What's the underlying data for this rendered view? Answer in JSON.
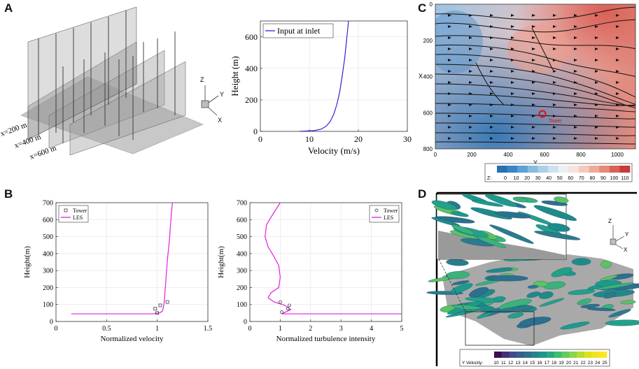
{
  "panels": {
    "a": "A",
    "b": "B",
    "c": "C",
    "d": "D"
  },
  "panel_a_schematic": {
    "plane_labels": [
      "x=200 m",
      "x=400 m",
      "x=600 m"
    ],
    "axis_labels": {
      "z": "Z",
      "y": "Y",
      "x": "X"
    }
  },
  "panel_c_map": {
    "x_ticks": [
      "0",
      "200",
      "400",
      "600",
      "800",
      "1000"
    ],
    "y_ticks": [
      "0",
      "200",
      "400",
      "600",
      "800"
    ],
    "x_axis_label": "Y",
    "y_axis_label": "X",
    "marker_label": "Tower",
    "colorbar_title": "Z:",
    "colorbar_ticks": [
      "0",
      "10",
      "20",
      "30",
      "40",
      "50",
      "60",
      "70",
      "80",
      "90",
      "100",
      "110"
    ],
    "colorbar_colors": [
      "#2a6fb0",
      "#3a86c4",
      "#5ea1d4",
      "#86bce0",
      "#adcfe8",
      "#cfe1ef",
      "#eaf0f4",
      "#f7e2dc",
      "#f5c9bc",
      "#eeab9a",
      "#e58978",
      "#d86357",
      "#c73d3c"
    ]
  },
  "panel_d_iso": {
    "colorbar_title": "Y Velocity:",
    "colorbar_ticks": [
      "10",
      "11",
      "12",
      "13",
      "14",
      "15",
      "16",
      "17",
      "18",
      "19",
      "20",
      "21",
      "22",
      "23",
      "24",
      "25"
    ],
    "colorbar_colors": [
      "#3b0f4f",
      "#43307a",
      "#3e4c8a",
      "#355f8d",
      "#2c718e",
      "#24838e",
      "#1f958b",
      "#27a882",
      "#40bc72",
      "#62cb5f",
      "#8ad647",
      "#b4de2c",
      "#dde318",
      "#f2e51d",
      "#fde725"
    ],
    "axis_labels": {
      "z": "Z",
      "y": "Y",
      "x": "X"
    }
  },
  "chart_data": [
    {
      "id": "inlet-profile",
      "type": "line",
      "xlabel": "Velocity (m/s)",
      "ylabel": "Height (m)",
      "xlim": [
        0,
        30
      ],
      "ylim": [
        0,
        700
      ],
      "xticks": [
        0,
        10,
        20,
        30
      ],
      "yticks": [
        0,
        200,
        400,
        600
      ],
      "grid": true,
      "legend": "top-left",
      "series": [
        {
          "name": "Input at inlet",
          "color": "#3a1fd6",
          "x": [
            8.0,
            11.0,
            12.5,
            13.5,
            14.3,
            15.0,
            15.6,
            16.2,
            16.7,
            17.2,
            17.6,
            18.0
          ],
          "y": [
            0,
            5,
            15,
            35,
            65,
            110,
            170,
            250,
            350,
            460,
            580,
            700
          ]
        }
      ]
    },
    {
      "id": "normalized-velocity",
      "type": "line",
      "xlabel": "Normalized velocity",
      "ylabel": "Height(m)",
      "xlim": [
        0,
        1.5
      ],
      "ylim": [
        0,
        700
      ],
      "xticks": [
        0,
        0.5,
        1,
        1.5
      ],
      "yticks": [
        0,
        100,
        200,
        300,
        400,
        500,
        600,
        700
      ],
      "grid": true,
      "legend": "top-left",
      "series": [
        {
          "name": "LES",
          "color": "#e020e0",
          "x": [
            0.15,
            0.95,
            1.02,
            1.05,
            1.06,
            1.07,
            1.08,
            1.09,
            1.1,
            1.11,
            1.12,
            1.13,
            1.14,
            1.15
          ],
          "y": [
            45,
            45,
            50,
            60,
            80,
            120,
            200,
            280,
            360,
            420,
            480,
            560,
            640,
            700
          ]
        },
        {
          "name": "Tower",
          "marker": "square",
          "x": [
            1.0,
            0.98,
            1.03,
            1.1
          ],
          "y": [
            50,
            75,
            95,
            115
          ]
        }
      ]
    },
    {
      "id": "normalized-turbulence",
      "type": "line",
      "xlabel": "Normalized turbulence intensity",
      "ylabel": "Height(m)",
      "xlim": [
        0,
        5
      ],
      "ylim": [
        0,
        700
      ],
      "xticks": [
        0,
        1,
        2,
        3,
        4,
        5
      ],
      "yticks": [
        0,
        100,
        200,
        300,
        400,
        500,
        600,
        700
      ],
      "grid": true,
      "legend": "top-right",
      "series": [
        {
          "name": "LES",
          "color": "#e020e0",
          "x": [
            5.0,
            1.05,
            1.35,
            1.15,
            0.8,
            0.6,
            0.7,
            0.95,
            1.0,
            0.95,
            0.8,
            0.6,
            0.5,
            0.55,
            0.75,
            1.0
          ],
          "y": [
            45,
            45,
            70,
            95,
            115,
            140,
            170,
            200,
            260,
            330,
            380,
            440,
            500,
            570,
            630,
            700
          ]
        },
        {
          "name": "Tower",
          "marker": "circle",
          "x": [
            1.05,
            1.25,
            1.3,
            1.0
          ],
          "y": [
            55,
            75,
            95,
            115
          ]
        }
      ]
    }
  ]
}
